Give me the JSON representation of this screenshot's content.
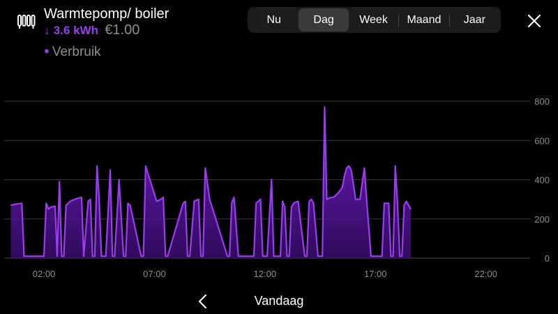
{
  "header": {
    "device_icon": "radiator-icon",
    "title": "Warmtepomp/ boiler",
    "usage_arrow": "↓",
    "usage_kwh": "3.6 kWh",
    "usage_cost": "€1.00"
  },
  "legend": {
    "label": "Verbruik",
    "color": "#9b3cf0"
  },
  "period_tabs": [
    {
      "label": "Nu",
      "active": false
    },
    {
      "label": "Dag",
      "active": true
    },
    {
      "label": "Week",
      "active": false
    },
    {
      "label": "Maand",
      "active": false
    },
    {
      "label": "Jaar",
      "active": false
    }
  ],
  "close_icon": "close-icon",
  "nav": {
    "prev_icon": "chevron-left-icon",
    "date_label": "Vandaag"
  },
  "colors": {
    "accent": "#9b3cf0",
    "gridline": "#3a3a3c",
    "tick_text": "#8e8e93"
  },
  "chart_data": {
    "type": "area",
    "series": [
      {
        "name": "Verbruik",
        "x": [
          0.5,
          0.7,
          1.0,
          1.1,
          2.0,
          2.1,
          2.2,
          2.3,
          2.5,
          2.6,
          2.7,
          2.8,
          2.9,
          3.0,
          3.1,
          3.2,
          3.4,
          3.7,
          3.8,
          4.0,
          4.1,
          4.2,
          4.3,
          4.4,
          4.5,
          4.6,
          4.8,
          5.0,
          5.1,
          5.2,
          5.4,
          5.6,
          5.7,
          5.8,
          5.9,
          6.4,
          6.5,
          6.6,
          7.1,
          7.3,
          7.4,
          7.5,
          7.6,
          8.3,
          8.4,
          8.5,
          8.6,
          8.8,
          9.0,
          9.1,
          9.2,
          9.3,
          9.5,
          10.3,
          10.4,
          10.5,
          10.6,
          10.8,
          11.5,
          11.6,
          11.7,
          11.8,
          11.9,
          12.1,
          12.3,
          12.4,
          12.7,
          12.8,
          12.9,
          13.0,
          13.1,
          13.2,
          13.3,
          13.5,
          13.8,
          13.9,
          14.0,
          14.1,
          14.2,
          14.4,
          14.6,
          14.7,
          14.8,
          15.0,
          15.1,
          15.2,
          15.3,
          15.5,
          15.6,
          15.7,
          15.8,
          15.9,
          16.0,
          16.1,
          16.3,
          16.5,
          16.6,
          16.8,
          17.3,
          17.4,
          17.5,
          17.6,
          17.7,
          17.8,
          17.9,
          18.0,
          18.1,
          18.2,
          18.3,
          18.4,
          18.6
        ],
        "values": [
          270,
          275,
          280,
          10,
          10,
          280,
          250,
          260,
          265,
          10,
          390,
          10,
          10,
          270,
          280,
          290,
          300,
          310,
          10,
          290,
          300,
          10,
          10,
          470,
          300,
          10,
          10,
          450,
          10,
          10,
          400,
          10,
          10,
          280,
          270,
          10,
          10,
          470,
          290,
          300,
          310,
          10,
          10,
          280,
          290,
          10,
          10,
          290,
          300,
          10,
          10,
          460,
          300,
          10,
          10,
          280,
          310,
          10,
          10,
          280,
          290,
          300,
          10,
          10,
          400,
          10,
          10,
          290,
          260,
          10,
          10,
          260,
          280,
          290,
          10,
          10,
          290,
          300,
          280,
          10,
          10,
          770,
          300,
          310,
          310,
          320,
          330,
          360,
          420,
          460,
          470,
          450,
          380,
          300,
          300,
          460,
          300,
          10,
          10,
          280,
          280,
          280,
          10,
          10,
          470,
          280,
          10,
          10,
          270,
          290,
          250
        ],
        "color": "#9b3cf0"
      }
    ],
    "x_ticks": [
      {
        "value": 2,
        "label": "02:00"
      },
      {
        "value": 7,
        "label": "07:00"
      },
      {
        "value": 12,
        "label": "12:00"
      },
      {
        "value": 17,
        "label": "17:00"
      },
      {
        "value": 22,
        "label": "22:00"
      }
    ],
    "y_ticks": [
      0,
      200,
      400,
      600,
      800
    ],
    "xlim": [
      0.2,
      24
    ],
    "ylim": [
      0,
      800
    ],
    "y_axis_position": "right",
    "grid": true
  }
}
